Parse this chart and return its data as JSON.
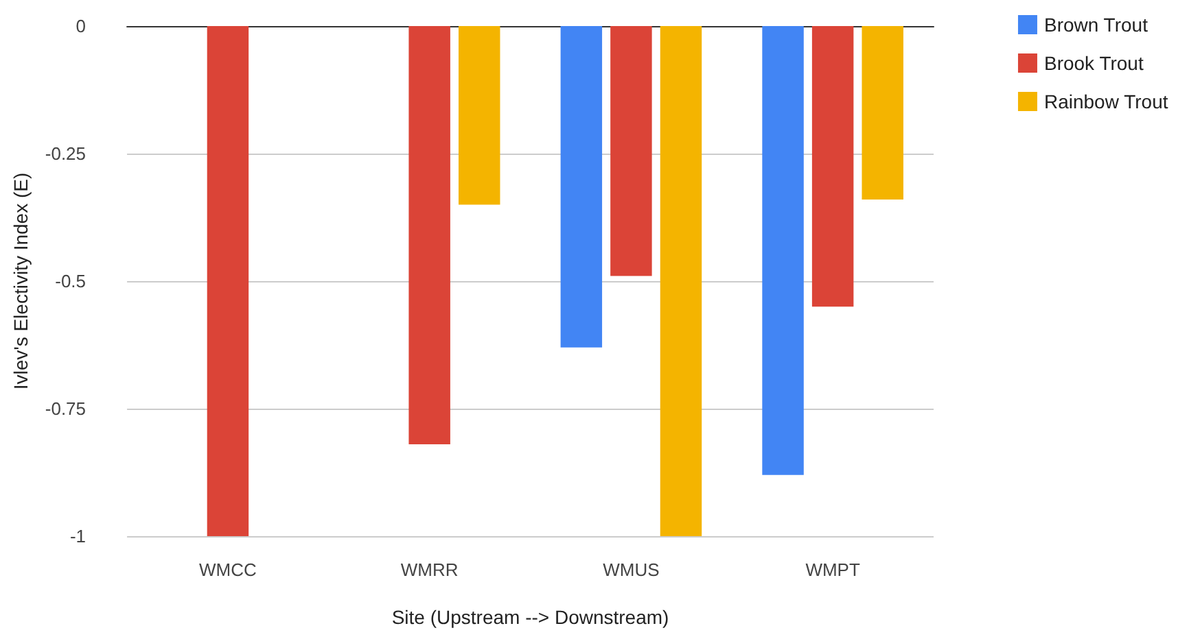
{
  "chart_data": {
    "type": "bar",
    "xlabel": "Site (Upstream --> Downstream)",
    "ylabel": "Ivlev's Electivity Index (E)",
    "categories": [
      "WMCC",
      "WMRR",
      "WMUS",
      "WMPT"
    ],
    "series": [
      {
        "name": "Brown Trout",
        "color": "#4285f4",
        "values": [
          null,
          null,
          -0.63,
          -0.88
        ]
      },
      {
        "name": "Brook Trout",
        "color": "#db4437",
        "values": [
          -1,
          -0.82,
          -0.49,
          -0.55
        ]
      },
      {
        "name": "Rainbow Trout",
        "color": "#f4b400",
        "values": [
          null,
          -0.35,
          -1,
          -0.34
        ]
      }
    ],
    "ylim": [
      -1,
      0
    ],
    "yticks": [
      0,
      -0.25,
      -0.5,
      -0.75,
      -1
    ],
    "grid": "y",
    "legend": "top right"
  }
}
